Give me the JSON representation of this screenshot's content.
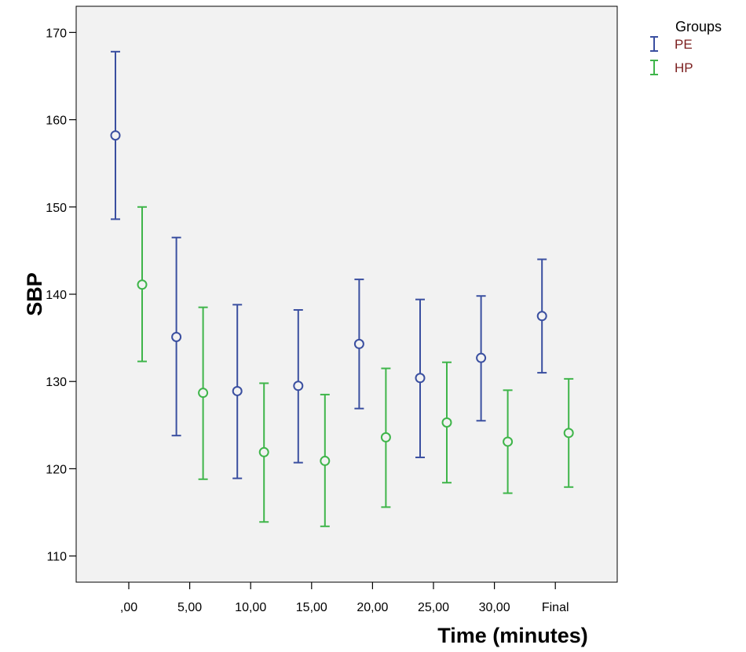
{
  "chart_data": {
    "type": "errorbar",
    "xlabel": "Time (minutes)",
    "ylabel": "SBP",
    "categories": [
      ",00",
      "5,00",
      "10,00",
      "15,00",
      "20,00",
      "25,00",
      "30,00",
      "Final"
    ],
    "ylim": [
      107,
      173
    ],
    "yticks": [
      "110",
      "120",
      "130",
      "140",
      "150",
      "160",
      "170"
    ],
    "grid": false,
    "legend": {
      "title": "Groups",
      "placement": "top-right"
    },
    "series": [
      {
        "name": "PE",
        "color": "#3a4fa0",
        "mean": [
          158.2,
          135.1,
          128.9,
          129.5,
          134.3,
          130.4,
          132.7,
          137.5
        ],
        "lower": [
          148.6,
          123.8,
          118.9,
          120.7,
          126.9,
          121.3,
          125.5,
          131.0
        ],
        "upper": [
          167.8,
          146.5,
          138.8,
          138.2,
          141.7,
          139.4,
          139.8,
          144.0
        ]
      },
      {
        "name": "HP",
        "color": "#3fb54a",
        "mean": [
          141.1,
          128.7,
          121.9,
          120.9,
          123.6,
          125.3,
          123.1,
          124.1
        ],
        "lower": [
          132.3,
          118.8,
          113.9,
          113.4,
          115.6,
          118.4,
          117.2,
          117.9
        ],
        "upper": [
          150.0,
          138.5,
          129.8,
          128.5,
          131.5,
          132.2,
          129.0,
          130.3
        ]
      }
    ]
  }
}
